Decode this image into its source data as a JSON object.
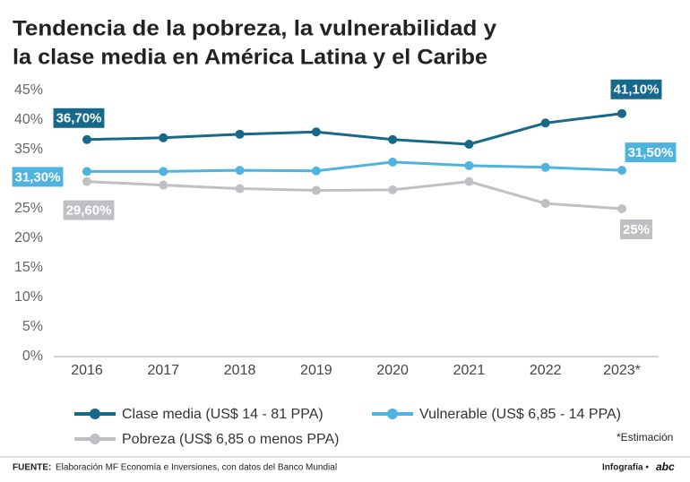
{
  "chart_data": {
    "type": "line",
    "title": [
      "Tendencia de la pobreza, la vulnerabilidad y",
      "la clase media en América Latina y el Caribe"
    ],
    "categories": [
      "2016",
      "2017",
      "2018",
      "2019",
      "2020",
      "2021",
      "2022",
      "2023*"
    ],
    "series": [
      {
        "name": "Clase media (US$ 14 - 81 PPA)",
        "color": "#17698a",
        "values": [
          36.7,
          37.0,
          37.6,
          38.0,
          36.7,
          35.9,
          39.5,
          41.1
        ],
        "value_labels": [
          "36,70%",
          null,
          null,
          null,
          null,
          null,
          null,
          "41,10%"
        ]
      },
      {
        "name": "Vulnerable (US$ 6,85 - 14 PPA)",
        "color": "#4fb3e0",
        "values": [
          31.3,
          31.3,
          31.5,
          31.4,
          32.9,
          32.3,
          32.0,
          31.5
        ],
        "value_labels": [
          "31,30%",
          null,
          null,
          null,
          null,
          null,
          null,
          "31,50%"
        ]
      },
      {
        "name": "Pobreza  (US$ 6,85 o menos PPA)",
        "color": "#c0c0c4",
        "values": [
          29.6,
          29.0,
          28.4,
          28.1,
          28.2,
          29.6,
          25.9,
          25
        ],
        "value_labels": [
          "29,60%",
          null,
          null,
          null,
          null,
          null,
          null,
          "25%"
        ]
      }
    ],
    "ylim": [
      0,
      45
    ],
    "yticks": [
      {
        "value": 0,
        "label": "0%"
      },
      {
        "value": 5,
        "label": "5%"
      },
      {
        "value": 10,
        "label": "10%"
      },
      {
        "value": 15,
        "label": "15%"
      },
      {
        "value": 20,
        "label": "20%"
      },
      {
        "value": 25,
        "label": "25%"
      },
      {
        "value": 30,
        "label": "30%"
      },
      {
        "value": 35,
        "label": "35%"
      },
      {
        "value": 40,
        "label": "40%"
      },
      {
        "value": 45,
        "label": "45%"
      }
    ],
    "grid": false,
    "note": "*Estimación",
    "source_label": "FUENTE:",
    "source": "Elaboración MF Economía e Inversiones, con datos del Banco Mundial",
    "credit": "Infografía •",
    "logo": "abc"
  }
}
